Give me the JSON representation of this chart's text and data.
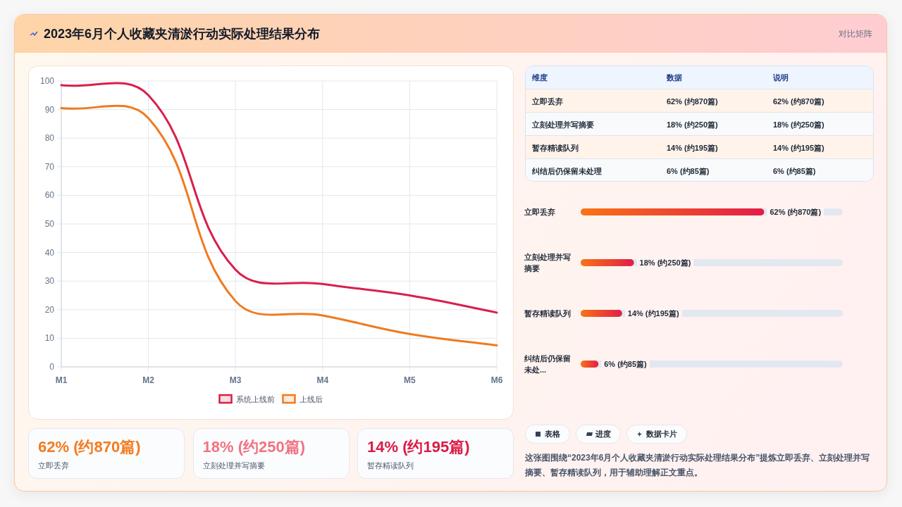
{
  "chart_data": [
    {
      "type": "other",
      "title": "2023年6月个人收藏夹清淤行动实际处理结果分布",
      "annotations": [
        "对比矩阵"
      ]
    },
    {
      "type": "line",
      "categories": [
        "M1",
        "M2",
        "M3",
        "M4",
        "M5",
        "M6"
      ],
      "series": [
        {
          "name": "系统上线前",
          "color": "#d81f4c",
          "values": [
            98.5,
            95,
            34,
            29,
            25,
            19
          ]
        },
        {
          "name": "上线后",
          "color": "#f07a1e",
          "values": [
            90.5,
            87,
            23,
            18,
            11.5,
            7.5
          ]
        }
      ],
      "ylim": [
        0,
        100
      ],
      "yticks": [
        0,
        10,
        20,
        30,
        40,
        50,
        60,
        70,
        80,
        90,
        100
      ],
      "grid": true,
      "legend": "bottom"
    },
    {
      "type": "other",
      "annotations": [
        "维度",
        "数据",
        "说明",
        "立即丢弃",
        "62% (约870篇)",
        "62% (约870篇)",
        "立刻处理并写摘要",
        "18% (约250篇)",
        "18% (约250篇)",
        "暂存精读队列",
        "14% (约195篇)",
        "14% (约195篇)",
        "纠结后仍保留未处理",
        "6% (约85篇)",
        "6% (约85篇)"
      ]
    },
    {
      "type": "bar",
      "orientation": "horizontal",
      "categories": [
        "立即丢弃",
        "立刻处理并写摘要",
        "暂存精读队列",
        "纠结后仍保留未处..."
      ],
      "values": [
        62,
        18,
        14,
        6
      ],
      "value_labels": [
        "62% (约870篇)",
        "18% (约250篇)",
        "14% (约195篇)",
        "6% (约85篇)"
      ],
      "color": "#e11d48"
    },
    {
      "type": "other",
      "annotations": [
        "62% (约870篇)",
        "立即丢弃",
        "18% (约250篇)",
        "立刻处理并写摘要",
        "14% (约195篇)",
        "暂存精读队列"
      ],
      "colors": [
        "#f47b20",
        "#f27382",
        "#dc1a47"
      ]
    },
    {
      "type": "other",
      "annotations": [
        "表格",
        "进度",
        "数据卡片",
        "这张图围绕“2023年6月个人收藏夹清淤行动实际处理结果分布”提炼立即丢弃、立刻处理并写摘要、暂存精读队列，用于辅助理解正文重点。"
      ]
    }
  ]
}
